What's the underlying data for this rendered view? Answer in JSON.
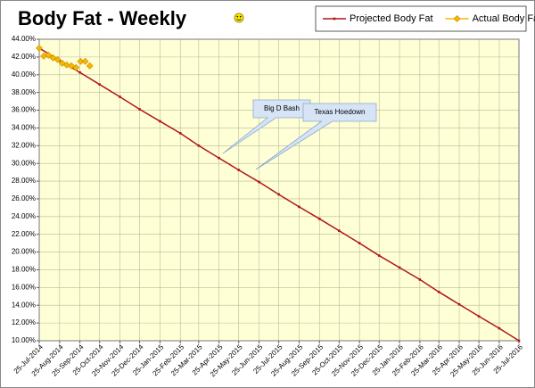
{
  "chart_data": {
    "type": "line",
    "title": "Body Fat - Weekly",
    "xlim": [
      "2014-07-25",
      "2016-07-25"
    ],
    "ylim": [
      10,
      44
    ],
    "yticks": [
      {
        "value": 10,
        "label": "10.00%"
      },
      {
        "value": 12,
        "label": "12.00%"
      },
      {
        "value": 14,
        "label": "14.00%"
      },
      {
        "value": 16,
        "label": "16.00%"
      },
      {
        "value": 18,
        "label": "18.00%"
      },
      {
        "value": 20,
        "label": "20.00%"
      },
      {
        "value": 22,
        "label": "22.00%"
      },
      {
        "value": 24,
        "label": "24.00%"
      },
      {
        "value": 26,
        "label": "26.00%"
      },
      {
        "value": 28,
        "label": "28.00%"
      },
      {
        "value": 30,
        "label": "30.00%"
      },
      {
        "value": 32,
        "label": "32.00%"
      },
      {
        "value": 34,
        "label": "34.00%"
      },
      {
        "value": 36,
        "label": "36.00%"
      },
      {
        "value": 38,
        "label": "38.00%"
      },
      {
        "value": 40,
        "label": "40.00%"
      },
      {
        "value": 42,
        "label": "42.00%"
      },
      {
        "value": 44,
        "label": "44.00%"
      }
    ],
    "xticks": [
      {
        "value": "2014-07-25",
        "label": "25-Jul-2014"
      },
      {
        "value": "2014-08-25",
        "label": "25-Aug-2014"
      },
      {
        "value": "2014-09-25",
        "label": "25-Sep-2014"
      },
      {
        "value": "2014-10-25",
        "label": "25-Oct-2014"
      },
      {
        "value": "2014-11-25",
        "label": "25-Nov-2014"
      },
      {
        "value": "2014-12-25",
        "label": "25-Dec-2014"
      },
      {
        "value": "2015-01-25",
        "label": "25-Jan-2015"
      },
      {
        "value": "2015-02-25",
        "label": "25-Feb-2015"
      },
      {
        "value": "2015-03-25",
        "label": "25-Mar-2015"
      },
      {
        "value": "2015-04-25",
        "label": "25-Apr-2015"
      },
      {
        "value": "2015-05-25",
        "label": "25-May-2015"
      },
      {
        "value": "2015-06-25",
        "label": "25-Jun-2015"
      },
      {
        "value": "2015-07-25",
        "label": "25-Jul-2015"
      },
      {
        "value": "2015-08-25",
        "label": "25-Aug-2015"
      },
      {
        "value": "2015-09-25",
        "label": "25-Sep-2015"
      },
      {
        "value": "2015-10-25",
        "label": "25-Oct-2015"
      },
      {
        "value": "2015-11-25",
        "label": "25-Nov-2015"
      },
      {
        "value": "2015-12-25",
        "label": "25-Dec-2015"
      },
      {
        "value": "2016-01-25",
        "label": "25-Jan-2016"
      },
      {
        "value": "2016-02-25",
        "label": "25-Feb-2016"
      },
      {
        "value": "2016-03-25",
        "label": "25-Mar-2016"
      },
      {
        "value": "2016-04-25",
        "label": "25-Apr-2016"
      },
      {
        "value": "2016-05-25",
        "label": "25-May-2016"
      },
      {
        "value": "2016-06-25",
        "label": "25-Jun-2016"
      },
      {
        "value": "2016-07-25",
        "label": "25-Jul-2016"
      }
    ],
    "grid": true,
    "legend": "top-right",
    "series": [
      {
        "name": "Projected Body Fat",
        "color": "#b0161c",
        "marker": "square",
        "x": [
          "2014-07-25",
          "2014-08-25",
          "2014-09-25",
          "2014-10-25",
          "2014-11-25",
          "2014-12-25",
          "2015-01-25",
          "2015-02-25",
          "2015-03-25",
          "2015-04-25",
          "2015-05-25",
          "2015-06-25",
          "2015-07-25",
          "2015-08-25",
          "2015-09-25",
          "2015-10-25",
          "2015-11-25",
          "2015-12-25",
          "2016-01-25",
          "2016-02-25",
          "2016-03-25",
          "2016-04-25",
          "2016-05-25",
          "2016-06-25",
          "2016-07-25"
        ],
        "values": [
          43,
          41.6,
          40.25,
          38.9,
          37.5,
          36.1,
          34.75,
          33.4,
          32,
          30.6,
          29.25,
          27.9,
          26.5,
          25.1,
          23.75,
          22.4,
          21,
          19.6,
          18.25,
          16.9,
          15.5,
          14.1,
          12.75,
          11.4,
          10
        ]
      },
      {
        "name": "Actual Body Fat",
        "color": "#f5b800",
        "marker": "diamond",
        "x": [
          "2014-07-25",
          "2014-08-01",
          "2014-08-08",
          "2014-08-15",
          "2014-08-22",
          "2014-08-29",
          "2014-09-05",
          "2014-09-12",
          "2014-09-19",
          "2014-09-26",
          "2014-10-03",
          "2014-10-10"
        ],
        "values": [
          43,
          42.1,
          42.2,
          41.9,
          41.7,
          41.3,
          41.1,
          41,
          40.8,
          41.5,
          41.5,
          41
        ]
      }
    ],
    "annotations": [
      {
        "text": "Big D Bash"
      },
      {
        "text": "Texas Hoedown"
      }
    ]
  }
}
